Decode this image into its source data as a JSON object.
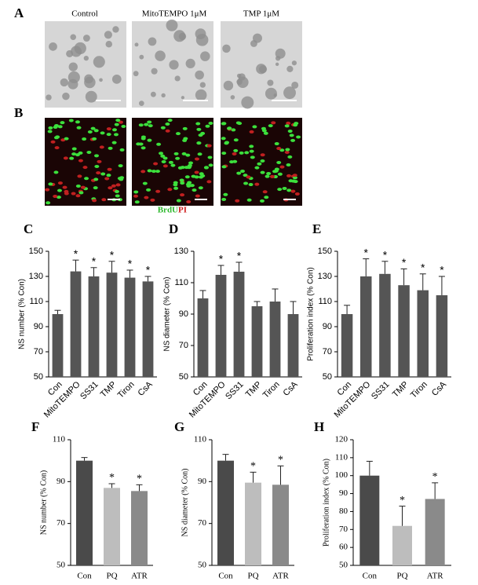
{
  "panels": {
    "A": {
      "label": "A",
      "captions": [
        "Control",
        "MitoTEMPO 1μM",
        "TMP 1μM"
      ]
    },
    "B": {
      "label": "B",
      "stain": [
        "BrdU",
        "PI"
      ]
    }
  },
  "chart_data": [
    {
      "type": "bar",
      "panel": "C",
      "ylabel": "NS number (% Con)",
      "categories": [
        "Con",
        "MitoTEMPO",
        "SS31",
        "TMP",
        "Tiron",
        "CsA"
      ],
      "values": [
        100,
        134,
        130,
        133,
        129,
        126
      ],
      "errors": [
        3,
        9,
        7,
        9,
        6,
        4
      ],
      "significance": [
        null,
        "*",
        "*",
        "*",
        "*",
        "*"
      ],
      "colors": [
        "#555555",
        "#555555",
        "#555555",
        "#555555",
        "#555555",
        "#555555"
      ],
      "ylim": [
        50,
        150
      ],
      "yticks": [
        50,
        70,
        90,
        110,
        130,
        150
      ]
    },
    {
      "type": "bar",
      "panel": "D",
      "ylabel": "NS diameter (% Con)",
      "categories": [
        "Con",
        "MitoTEMPO",
        "SS31",
        "TMP",
        "Tiron",
        "CsA"
      ],
      "values": [
        100,
        115,
        117,
        95,
        98,
        90
      ],
      "errors": [
        5,
        6,
        6,
        3,
        8,
        8
      ],
      "significance": [
        null,
        "*",
        "*",
        null,
        null,
        null
      ],
      "colors": [
        "#555555",
        "#555555",
        "#555555",
        "#555555",
        "#555555",
        "#555555"
      ],
      "ylim": [
        50,
        130
      ],
      "yticks": [
        50,
        70,
        90,
        110,
        130
      ]
    },
    {
      "type": "bar",
      "panel": "E",
      "ylabel": "Proliferation index (% Con)",
      "categories": [
        "Con",
        "MitoTEMPO",
        "SS31",
        "TMP",
        "Tiron",
        "CsA"
      ],
      "values": [
        100,
        130,
        132,
        123,
        119,
        115
      ],
      "errors": [
        7,
        14,
        10,
        13,
        13,
        15
      ],
      "significance": [
        null,
        "*",
        "*",
        "*",
        "*",
        "*"
      ],
      "colors": [
        "#555555",
        "#555555",
        "#555555",
        "#555555",
        "#555555",
        "#555555"
      ],
      "ylim": [
        50,
        150
      ],
      "yticks": [
        50,
        70,
        90,
        110,
        130,
        150
      ]
    },
    {
      "type": "bar",
      "panel": "F",
      "ylabel": "NS number (% Con)",
      "categories": [
        "Con",
        "PQ",
        "ATR"
      ],
      "values": [
        100,
        87,
        85.5
      ],
      "errors": [
        1.5,
        2,
        3
      ],
      "significance": [
        null,
        "*",
        "*"
      ],
      "colors": [
        "#4a4a4a",
        "#bdbdbd",
        "#8a8a8a"
      ],
      "ylim": [
        50,
        110
      ],
      "yticks": [
        50,
        70,
        90,
        110
      ]
    },
    {
      "type": "bar",
      "panel": "G",
      "ylabel": "NS diameter (% Con)",
      "categories": [
        "Con",
        "PQ",
        "ATR"
      ],
      "values": [
        100,
        89.5,
        88.5
      ],
      "errors": [
        3,
        5,
        9
      ],
      "significance": [
        null,
        "*",
        "*"
      ],
      "colors": [
        "#4a4a4a",
        "#bdbdbd",
        "#8a8a8a"
      ],
      "ylim": [
        50,
        110
      ],
      "yticks": [
        50,
        70,
        90,
        110
      ]
    },
    {
      "type": "bar",
      "panel": "H",
      "ylabel": "Proliferation index (% Con)",
      "categories": [
        "Con",
        "PQ",
        "ATR"
      ],
      "values": [
        100,
        72,
        87
      ],
      "errors": [
        8,
        11,
        9
      ],
      "significance": [
        null,
        "*",
        "*"
      ],
      "colors": [
        "#4a4a4a",
        "#bdbdbd",
        "#8a8a8a"
      ],
      "ylim": [
        50,
        120
      ],
      "yticks": [
        50,
        60,
        70,
        80,
        90,
        100,
        110,
        120
      ]
    }
  ]
}
